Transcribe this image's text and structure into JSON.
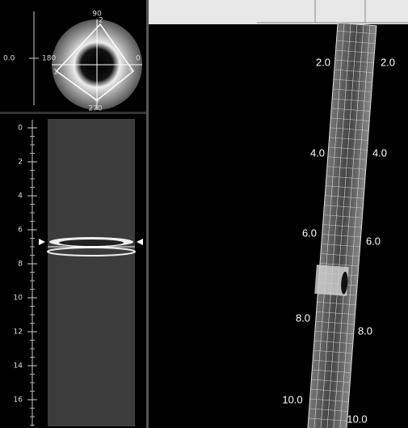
{
  "polar_view": {
    "axis_labels": {
      "top": "90",
      "left": "180",
      "right": "0",
      "bottom": "270"
    },
    "markers": [
      "1",
      "2",
      "3",
      "4"
    ],
    "offset_label": "0.0"
  },
  "longitudinal_view": {
    "scale_labels": [
      "0",
      "2",
      "4",
      "6",
      "8",
      "10",
      "12",
      "14",
      "16"
    ]
  },
  "vessel_view": {
    "left_labels": [
      "2.0",
      "4.0",
      "6.0",
      "8.0",
      "10.0"
    ],
    "right_labels": [
      "2.0",
      "4.0",
      "6.0",
      "8.0",
      "10.0"
    ]
  }
}
